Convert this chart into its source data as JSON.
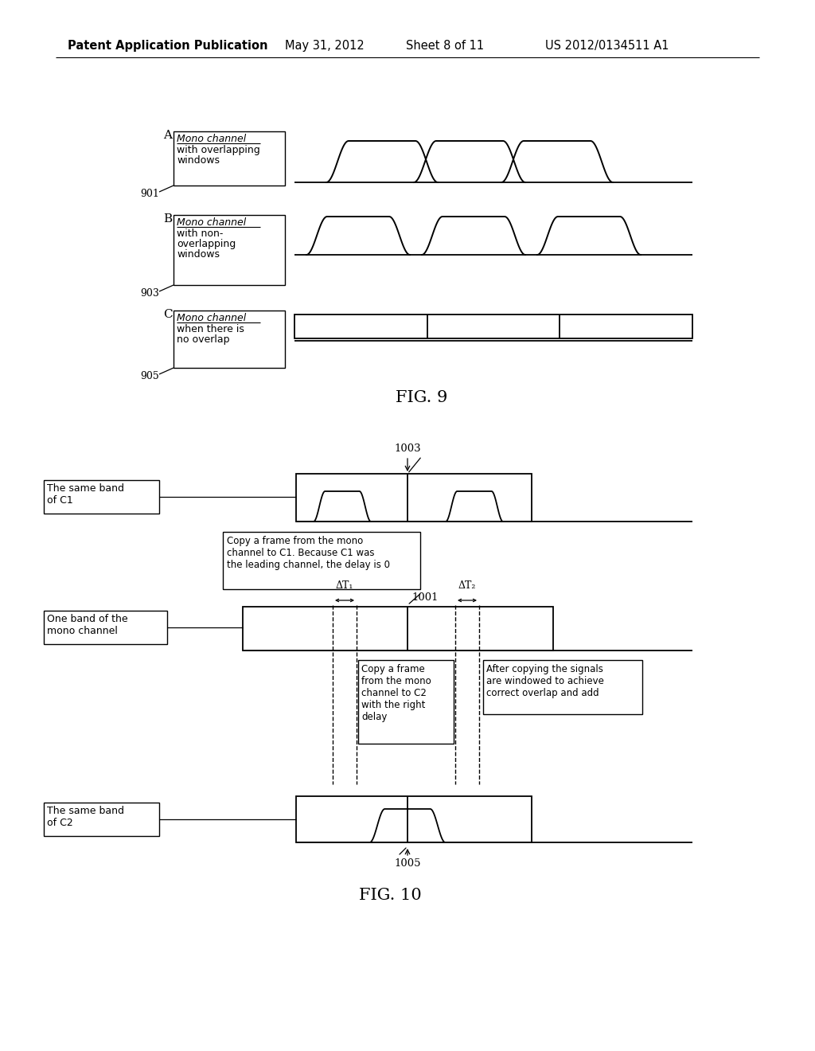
{
  "bg_color": "#ffffff",
  "header_text": "Patent Application Publication",
  "header_date": "May 31, 2012",
  "header_sheet": "Sheet 8 of 11",
  "header_patent": "US 2012/0134511 A1",
  "fig9_title": "FIG. 9",
  "fig10_title": "FIG. 10",
  "box_A_line1": "Mono channel",
  "box_A_line2": "with overlapping",
  "box_A_line3": "windows",
  "box_B_line1": "Mono channel",
  "box_B_line2": "with non-",
  "box_B_line3": "overlapping",
  "box_B_line4": "windows",
  "box_C_line1": "Mono channel",
  "box_C_line2": "when there is",
  "box_C_line3": "no overlap",
  "label_901": "901",
  "label_903": "903",
  "label_905": "905",
  "label_1003": "1003",
  "label_1001": "1001",
  "label_1005": "1005",
  "box_C1_text": "The same band\nof C1",
  "box_mono_text": "One band of the\nmono channel",
  "box_C2_text": "The same band\nof C2",
  "box_copy_C1_line1": "Copy a frame from the mono",
  "box_copy_C1_line2": "channel to C1. Because C1 was",
  "box_copy_C1_line3": "the leading channel, the delay is 0",
  "box_copy_C2_line1": "Copy a frame",
  "box_copy_C2_line2": "from the mono",
  "box_copy_C2_line3": "channel to C2",
  "box_copy_C2_line4": "with the right",
  "box_copy_C2_line5": "delay",
  "box_after_line1": "After copying the signals",
  "box_after_line2": "are windowed to achieve",
  "box_after_line3": "correct overlap and add",
  "delta_T1": "ΔT₁",
  "delta_T2": "ΔT₂"
}
